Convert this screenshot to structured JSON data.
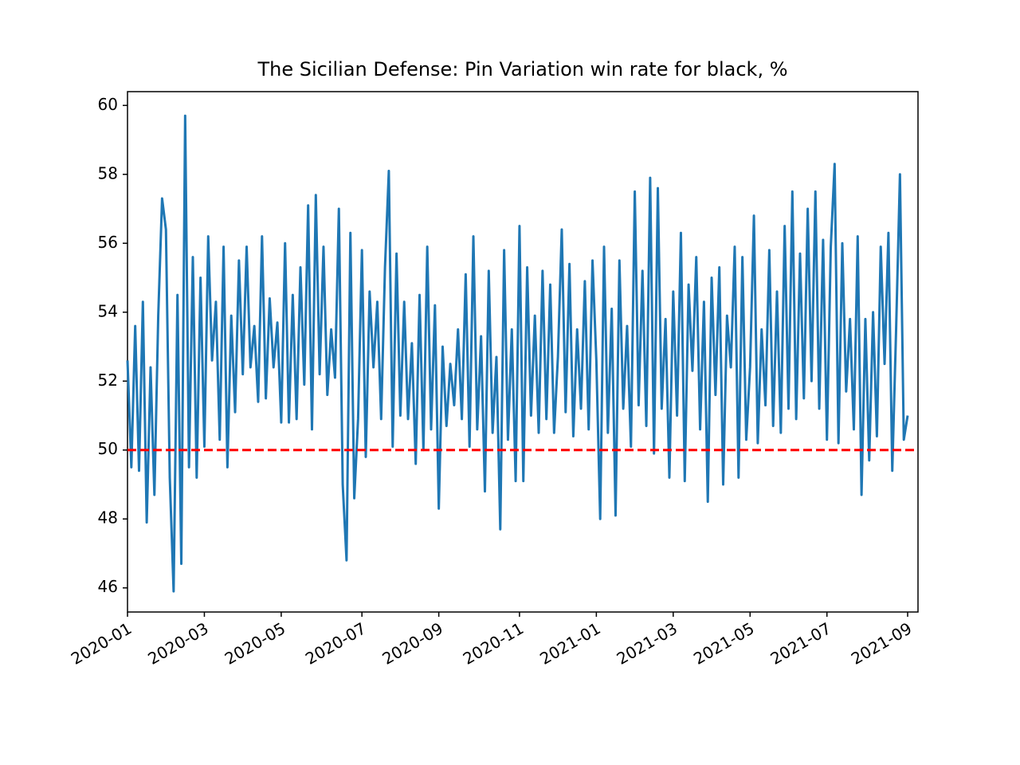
{
  "chart_data": {
    "type": "line",
    "title": "The Sicilian Defense: Pin Variation win rate for black, %",
    "categories": [
      "2020-01",
      null,
      null,
      null,
      null,
      null,
      null,
      null,
      null,
      null,
      null,
      null,
      null,
      null,
      null,
      null,
      null,
      null,
      null,
      null,
      "2020-03",
      null,
      null,
      null,
      null,
      null,
      null,
      null,
      null,
      null,
      null,
      null,
      null,
      null,
      null,
      null,
      null,
      null,
      null,
      null,
      "2020-05",
      null,
      null,
      null,
      null,
      null,
      null,
      null,
      null,
      null,
      null,
      null,
      null,
      null,
      null,
      null,
      null,
      null,
      null,
      null,
      null,
      "2020-07",
      null,
      null,
      null,
      null,
      null,
      null,
      null,
      null,
      null,
      null,
      null,
      null,
      null,
      null,
      null,
      null,
      null,
      null,
      null,
      "2020-09",
      null,
      null,
      null,
      null,
      null,
      null,
      null,
      null,
      null,
      null,
      null,
      null,
      null,
      null,
      null,
      null,
      null,
      null,
      null,
      null,
      "2020-11",
      null,
      null,
      null,
      null,
      null,
      null,
      null,
      null,
      null,
      null,
      null,
      null,
      null,
      null,
      null,
      null,
      null,
      null,
      null,
      "2021-01",
      null,
      null,
      null,
      null,
      null,
      null,
      null,
      null,
      null,
      null,
      null,
      null,
      null,
      null,
      null,
      null,
      null,
      null,
      null,
      "2021-03",
      null,
      null,
      null,
      null,
      null,
      null,
      null,
      null,
      null,
      null,
      null,
      null,
      null,
      null,
      null,
      null,
      null,
      null,
      null,
      "2021-05",
      null,
      null,
      null,
      null,
      null,
      null,
      null,
      null,
      null,
      null,
      null,
      null,
      null,
      null,
      null,
      null,
      null,
      null,
      null,
      "2021-07",
      null,
      null,
      null,
      null,
      null,
      null,
      null,
      null,
      null,
      null,
      null,
      null,
      null,
      null,
      null,
      null,
      null,
      null,
      null,
      null,
      "2021-09"
    ],
    "series": [
      {
        "color": "#1f77b4",
        "values": [
          52.6,
          49.5,
          53.6,
          49.4,
          54.3,
          47.9,
          52.4,
          48.7,
          53.9,
          57.3,
          56.4,
          49.2,
          45.9,
          54.5,
          46.7,
          59.7,
          49.5,
          55.6,
          49.2,
          55.0,
          50.1,
          56.2,
          52.6,
          54.3,
          50.3,
          55.9,
          49.5,
          53.9,
          51.1,
          55.5,
          52.2,
          55.9,
          52.4,
          53.6,
          51.4,
          56.2,
          51.5,
          54.4,
          52.4,
          53.7,
          50.8,
          56.0,
          50.8,
          54.5,
          50.9,
          55.3,
          51.9,
          57.1,
          50.6,
          57.4,
          52.2,
          55.9,
          51.6,
          53.5,
          52.1,
          57.0,
          49.0,
          46.8,
          56.3,
          48.6,
          50.9,
          55.8,
          49.8,
          54.6,
          52.4,
          54.3,
          50.9,
          55.3,
          58.1,
          50.1,
          55.7,
          51.0,
          54.3,
          50.9,
          53.1,
          49.6,
          54.5,
          50.0,
          55.9,
          50.6,
          54.2,
          48.3,
          53.0,
          50.7,
          52.5,
          51.3,
          53.5,
          50.9,
          55.1,
          50.1,
          56.2,
          50.6,
          53.3,
          48.8,
          55.2,
          50.5,
          52.7,
          47.7,
          55.8,
          50.3,
          53.5,
          49.1,
          56.5,
          49.1,
          55.3,
          51.0,
          53.9,
          50.5,
          55.2,
          50.9,
          54.8,
          50.5,
          52.7,
          56.4,
          51.1,
          55.4,
          50.4,
          53.5,
          51.2,
          54.9,
          50.6,
          55.5,
          52.6,
          48.0,
          55.9,
          50.5,
          54.1,
          48.1,
          55.5,
          51.2,
          53.6,
          50.1,
          57.5,
          51.3,
          55.2,
          50.7,
          57.9,
          49.9,
          57.6,
          51.2,
          53.8,
          49.2,
          54.6,
          51.0,
          56.3,
          49.1,
          54.8,
          52.3,
          55.6,
          50.6,
          54.3,
          48.5,
          55.0,
          51.6,
          55.3,
          49.0,
          53.9,
          52.4,
          55.9,
          49.2,
          55.6,
          50.3,
          52.4,
          56.8,
          50.2,
          53.5,
          51.3,
          55.8,
          50.7,
          54.6,
          50.5,
          56.5,
          51.2,
          57.5,
          50.9,
          55.7,
          51.5,
          57.0,
          52.0,
          57.5,
          51.2,
          56.1,
          50.3,
          55.9,
          58.3,
          50.2,
          56.0,
          51.7,
          53.8,
          50.6,
          56.2,
          48.7,
          53.8,
          49.7,
          54.0,
          50.4,
          55.9,
          52.5,
          56.3,
          49.4,
          53.5,
          58.0,
          50.3,
          51.0
        ]
      }
    ],
    "hline": {
      "value": 50,
      "color": "#ff0000",
      "style": "dashed"
    },
    "ylim": [
      45.3,
      60.4
    ],
    "yticks": [
      46,
      48,
      50,
      52,
      54,
      56,
      58,
      60
    ]
  }
}
